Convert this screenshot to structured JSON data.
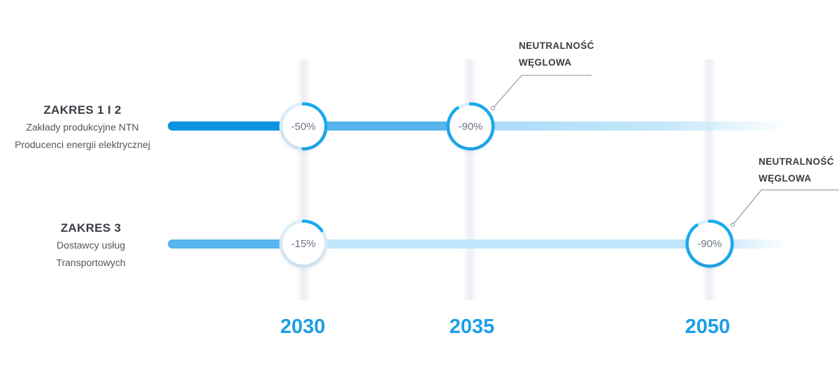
{
  "scopes": [
    {
      "title": "ZAKRES 1 I 2",
      "lines": [
        "Zakłady produkcyjne NTN",
        "Producenci energii elektrycznej"
      ]
    },
    {
      "title": "ZAKRES 3",
      "lines": [
        "Dostawcy usług",
        "Transportowych"
      ]
    }
  ],
  "years": [
    "2030",
    "2035",
    "2050"
  ],
  "milestones": [
    {
      "scope": "ZAKRES 1 I 2",
      "year": "2030",
      "label": "-50%",
      "reduction": 50
    },
    {
      "scope": "ZAKRES 1 I 2",
      "year": "2035",
      "label": "-90%",
      "reduction": 90
    },
    {
      "scope": "ZAKRES 3",
      "year": "2030",
      "label": "-15%",
      "reduction": 15
    },
    {
      "scope": "ZAKRES 3",
      "year": "2050",
      "label": "-90%",
      "reduction": 90
    }
  ],
  "callouts": [
    {
      "lines": [
        "NEUTRALNOŚĆ",
        "WĘGLOWA"
      ]
    },
    {
      "lines": [
        "NEUTRALNOŚĆ",
        "WĘGLOWA"
      ]
    }
  ],
  "colors": {
    "bar_dark": "#0a94e0",
    "bar_mid": "#55b5ec",
    "bar_light": "#b6e0fa",
    "ring": "#19aef2",
    "year_text": "#1d9ee6"
  }
}
